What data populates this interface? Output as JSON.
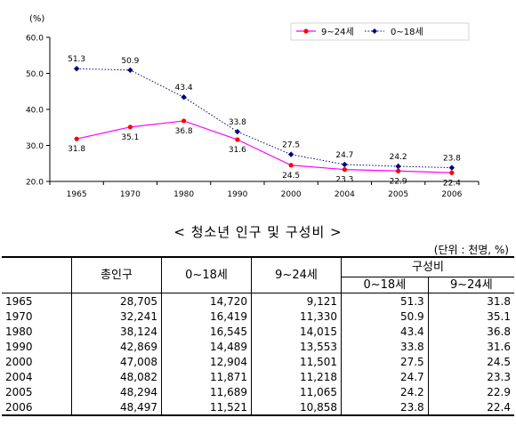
{
  "chart_data": {
    "type": "line",
    "categories": [
      "1965",
      "1970",
      "1980",
      "1990",
      "2000",
      "2004",
      "2005",
      "2006"
    ],
    "y_unit": "(%)",
    "ylim": [
      20.0,
      60.0
    ],
    "yticks": [
      "60.0",
      "50.0",
      "40.0",
      "30.0",
      "20.0"
    ],
    "series": [
      {
        "name": "9~24세",
        "color": "#ff00ff",
        "marker_color": "#ff0000",
        "style": "solid",
        "marker": "circle",
        "values": [
          31.8,
          35.1,
          36.8,
          31.6,
          24.5,
          23.3,
          22.9,
          22.4
        ],
        "labels": [
          "31.8",
          "35.1",
          "36.8",
          "31.6",
          "24.5",
          "23.3",
          "22.9",
          "22.4"
        ]
      },
      {
        "name": "0~18세",
        "color": "#000080",
        "marker_color": "#000080",
        "style": "dotted",
        "marker": "diamond",
        "values": [
          51.3,
          50.9,
          43.4,
          33.8,
          27.5,
          24.7,
          24.2,
          23.8
        ],
        "labels": [
          "51.3",
          "50.9",
          "43.4",
          "33.8",
          "27.5",
          "24.7",
          "24.2",
          "23.8"
        ]
      }
    ]
  },
  "caption": "< 청소년 인구 및 구성비 >",
  "unit_note": "(단위 : 천명, %)",
  "table": {
    "headers": {
      "total": "총인구",
      "age_0_18": "0~18세",
      "age_9_24": "9~24세",
      "ratio_group": "구성비",
      "ratio_0_18": "0~18세",
      "ratio_9_24": "9~24세"
    },
    "rows": [
      [
        "1965",
        "28,705",
        "14,720",
        "9,121",
        "51.3",
        "31.8"
      ],
      [
        "1970",
        "32,241",
        "16,419",
        "11,330",
        "50.9",
        "35.1"
      ],
      [
        "1980",
        "38,124",
        "16,545",
        "14,015",
        "43.4",
        "36.8"
      ],
      [
        "1990",
        "42,869",
        "14,489",
        "13,553",
        "33.8",
        "31.6"
      ],
      [
        "2000",
        "47,008",
        "12,904",
        "11,501",
        "27.5",
        "24.5"
      ],
      [
        "2004",
        "48,082",
        "11,871",
        "11,218",
        "24.7",
        "23.3"
      ],
      [
        "2005",
        "48,294",
        "11,689",
        "11,065",
        "24.2",
        "22.9"
      ],
      [
        "2006",
        "48,497",
        "11,521",
        "10,858",
        "23.8",
        "22.4"
      ]
    ]
  }
}
